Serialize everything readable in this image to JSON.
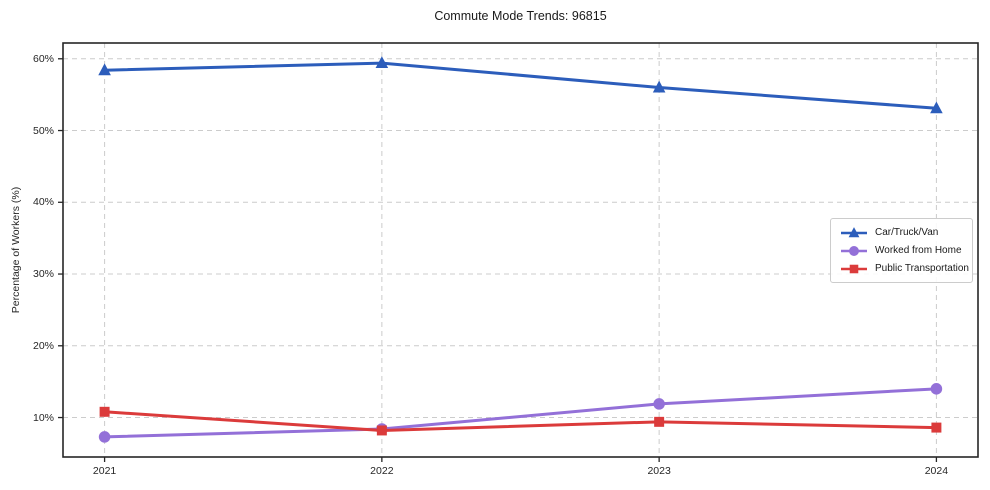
{
  "figure": {
    "background": "#ffffff"
  },
  "chart_data": {
    "type": "line",
    "title": "Commute Mode Trends: 96815",
    "xlabel": "",
    "ylabel": "Percentage of Workers (%)",
    "x": [
      2021,
      2022,
      2023,
      2024
    ],
    "x_tick_labels": [
      "2021",
      "2022",
      "2023",
      "2024"
    ],
    "xlim": [
      2020.85,
      2024.15
    ],
    "ylim": [
      4.5,
      62.2
    ],
    "y_ticks": [
      10,
      20,
      30,
      40,
      50,
      60
    ],
    "y_tick_labels": [
      "10%",
      "20%",
      "30%",
      "40%",
      "50%",
      "60%"
    ],
    "grid": true,
    "grid_style": "dashed",
    "legend_position": "center-right",
    "series": [
      {
        "name": "Car/Truck/Van",
        "color": "#2c5dbb",
        "marker": "triangle",
        "values": [
          58.4,
          59.4,
          56.0,
          53.1
        ]
      },
      {
        "name": "Worked from Home",
        "color": "#9370d8",
        "marker": "circle",
        "values": [
          7.3,
          8.4,
          11.9,
          14.0
        ]
      },
      {
        "name": "Public Transportation",
        "color": "#db3b3b",
        "marker": "square",
        "values": [
          10.8,
          8.2,
          9.4,
          8.6
        ]
      }
    ],
    "axis_colors": {
      "spine": "#262626",
      "grid": "#cccccc",
      "tick_label": "#262626"
    }
  }
}
